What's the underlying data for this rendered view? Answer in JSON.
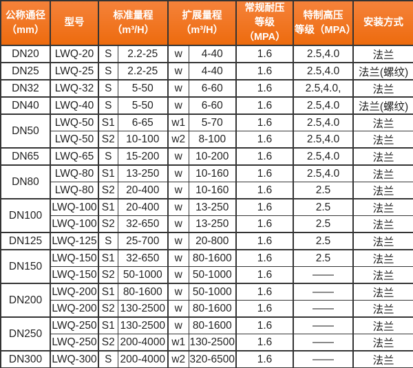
{
  "colors": {
    "header_bg_top": "#f5823a",
    "header_bg_bottom": "#ed6b0e",
    "header_text": "#ffffff",
    "border": "#333333",
    "body_text": "#1f1f1f",
    "body_bg": "#ffffff"
  },
  "chart_data": {
    "type": "table",
    "headers": [
      {
        "name": "col-nominal-diameter",
        "label": "公称通径\n（mm）",
        "colspan": 1
      },
      {
        "name": "col-model",
        "label": "型号",
        "colspan": 1
      },
      {
        "name": "col-standard-range",
        "label": "标准量程\n（m³/H）",
        "colspan": 2
      },
      {
        "name": "col-extended-range",
        "label": "扩展量程\n（m³/H）",
        "colspan": 2
      },
      {
        "name": "col-normal-pressure",
        "label": "常规耐压\n等级（MPA）",
        "colspan": 1
      },
      {
        "name": "col-special-pressure",
        "label": "特制高压\n等级（MPA）",
        "colspan": 1
      },
      {
        "name": "col-installation",
        "label": "安装方式",
        "colspan": 1
      }
    ],
    "rows": [
      {
        "dn": "DN20",
        "dn_rowspan": 1,
        "group_start": true,
        "model": "LWQ-20",
        "std_grade": "S",
        "std_range": "2.2-25",
        "ext_grade": "w",
        "ext_range": "4-40",
        "normal_pressure": "1.6",
        "special_pressure": "2.5,4.0",
        "install": "法兰"
      },
      {
        "dn": "DN25",
        "dn_rowspan": 1,
        "group_start": true,
        "model": "LWQ-25",
        "std_grade": "S",
        "std_range": "2.2-25",
        "ext_grade": "w",
        "ext_range": "4-40",
        "normal_pressure": "1.6",
        "special_pressure": "2.5,4.0",
        "install": "法兰(螺纹)"
      },
      {
        "dn": "DN32",
        "dn_rowspan": 1,
        "group_start": true,
        "model": "LWQ-32",
        "std_grade": "S",
        "std_range": "5-50",
        "ext_grade": "w",
        "ext_range": "6-60",
        "normal_pressure": "1.6",
        "special_pressure": "2.5,4.0,",
        "install": "法兰"
      },
      {
        "dn": "DN40",
        "dn_rowspan": 1,
        "group_start": true,
        "model": "LWQ-40",
        "std_grade": "S",
        "std_range": "5-50",
        "ext_grade": "w",
        "ext_range": "6-60",
        "normal_pressure": "1.6",
        "special_pressure": "2.5,4.0",
        "install": "法兰(螺纹)"
      },
      {
        "dn": "DN50",
        "dn_rowspan": 2,
        "group_start": true,
        "model": "LWQ-50",
        "std_grade": "S1",
        "std_range": "6-65",
        "ext_grade": "w1",
        "ext_range": "5-70",
        "normal_pressure": "1.6",
        "special_pressure": "2.5,4.0",
        "install": "法兰"
      },
      {
        "dn": null,
        "dn_rowspan": 0,
        "group_start": false,
        "model": "LWQ-50",
        "std_grade": "S2",
        "std_range": "10-100",
        "ext_grade": "w2",
        "ext_range": "8-100",
        "normal_pressure": "1.6",
        "special_pressure": "2.5,4.0",
        "install": "法兰"
      },
      {
        "dn": "DN65",
        "dn_rowspan": 1,
        "group_start": true,
        "model": "LWQ-65",
        "std_grade": "S",
        "std_range": "15-200",
        "ext_grade": "w",
        "ext_range": "10-200",
        "normal_pressure": "1.6",
        "special_pressure": "2.5,4.0",
        "install": "法兰"
      },
      {
        "dn": "DN80",
        "dn_rowspan": 2,
        "group_start": true,
        "model": "LWQ-80",
        "std_grade": "S1",
        "std_range": "13-250",
        "ext_grade": "w",
        "ext_range": "10-160",
        "normal_pressure": "1.6",
        "special_pressure": "2.5,4.0",
        "install": "法兰"
      },
      {
        "dn": null,
        "dn_rowspan": 0,
        "group_start": false,
        "model": "LWQ-80",
        "std_grade": "S2",
        "std_range": "20-400",
        "ext_grade": "w",
        "ext_range": "10-160",
        "normal_pressure": "1.6",
        "special_pressure": "2.5",
        "install": "法兰"
      },
      {
        "dn": "DN100",
        "dn_rowspan": 2,
        "group_start": true,
        "model": "LWQ-100",
        "std_grade": "S1",
        "std_range": "20-400",
        "ext_grade": "w",
        "ext_range": "13-250",
        "normal_pressure": "1.6",
        "special_pressure": "2.5",
        "install": "法兰"
      },
      {
        "dn": null,
        "dn_rowspan": 0,
        "group_start": false,
        "model": "LWQ-100",
        "std_grade": "S2",
        "std_range": "32-650",
        "ext_grade": "w",
        "ext_range": "13-250",
        "normal_pressure": "1.6",
        "special_pressure": "2.5",
        "install": "法兰"
      },
      {
        "dn": "DN125",
        "dn_rowspan": 1,
        "group_start": true,
        "model": "LWQ-125",
        "std_grade": "S",
        "std_range": "25-700",
        "ext_grade": "w",
        "ext_range": "20-800",
        "normal_pressure": "1.6",
        "special_pressure": "2.5",
        "install": "法兰"
      },
      {
        "dn": "DN150",
        "dn_rowspan": 2,
        "group_start": true,
        "model": "LWQ-150",
        "std_grade": "S1",
        "std_range": "32-650",
        "ext_grade": "w",
        "ext_range": "80-1600",
        "normal_pressure": "1.6",
        "special_pressure": "2.5",
        "install": "法兰"
      },
      {
        "dn": null,
        "dn_rowspan": 0,
        "group_start": false,
        "model": "LWQ-150",
        "std_grade": "S2",
        "std_range": "50-1000",
        "ext_grade": "w",
        "ext_range": "50-1000",
        "normal_pressure": "1.6",
        "special_pressure": "——",
        "install": "法兰"
      },
      {
        "dn": "DN200",
        "dn_rowspan": 2,
        "group_start": true,
        "model": "LWQ-200",
        "std_grade": "S1",
        "std_range": "80-1600",
        "ext_grade": "w",
        "ext_range": "50-1000",
        "normal_pressure": "1.6",
        "special_pressure": "——",
        "install": "法兰"
      },
      {
        "dn": null,
        "dn_rowspan": 0,
        "group_start": false,
        "model": "LWQ-200",
        "std_grade": "S2",
        "std_range": "130-2500",
        "ext_grade": "w",
        "ext_range": "80-1600",
        "normal_pressure": "1.6",
        "special_pressure": "——",
        "install": "法兰"
      },
      {
        "dn": "DN250",
        "dn_rowspan": 2,
        "group_start": true,
        "model": "LWQ-250",
        "std_grade": "S1",
        "std_range": "130-2500",
        "ext_grade": "w",
        "ext_range": "80-1600",
        "normal_pressure": "1.6",
        "special_pressure": "——",
        "install": "法兰"
      },
      {
        "dn": null,
        "dn_rowspan": 0,
        "group_start": false,
        "model": "LWQ-250",
        "std_grade": "S2",
        "std_range": "200-4000",
        "ext_grade": "w1",
        "ext_range": "130-2500",
        "normal_pressure": "1.6",
        "special_pressure": "——",
        "install": "法兰"
      },
      {
        "dn": "DN300",
        "dn_rowspan": 1,
        "group_start": true,
        "model": "LWQ-300",
        "std_grade": "S",
        "std_range": "200-4000",
        "ext_grade": "w2",
        "ext_range": "320-6500",
        "normal_pressure": "1.6",
        "special_pressure": "——",
        "install": "法兰"
      }
    ]
  }
}
